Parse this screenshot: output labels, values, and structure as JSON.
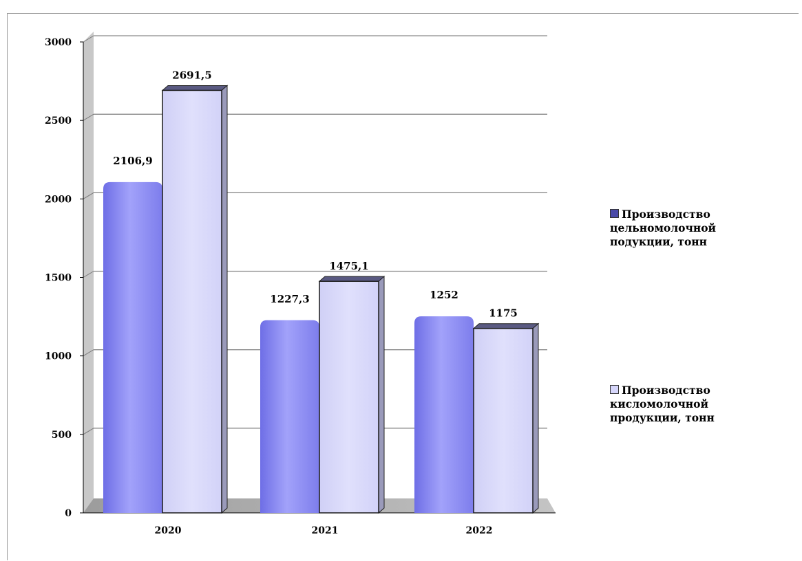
{
  "chart_data": {
    "type": "bar",
    "title": "",
    "categories": [
      "2020",
      "2021",
      "2022"
    ],
    "series": [
      {
        "name": "Производство цельномолочной подукции, тонн",
        "values": [
          2106.9,
          1227.3,
          1252
        ],
        "labels": [
          "2106,9",
          "1227,3",
          "1252"
        ],
        "color": "#8f8ff2"
      },
      {
        "name": "Производство кисломолочной продукции, тонн",
        "values": [
          2691.5,
          1475.1,
          1175
        ],
        "labels": [
          "2691,5",
          "1475,1",
          "1175"
        ],
        "color": "#d6d6fb"
      }
    ],
    "ylim": [
      0,
      3000
    ],
    "yticks": [
      "0",
      "500",
      "1000",
      "1500",
      "2000",
      "2500",
      "3000"
    ],
    "grid": true,
    "legend_position": "right"
  }
}
